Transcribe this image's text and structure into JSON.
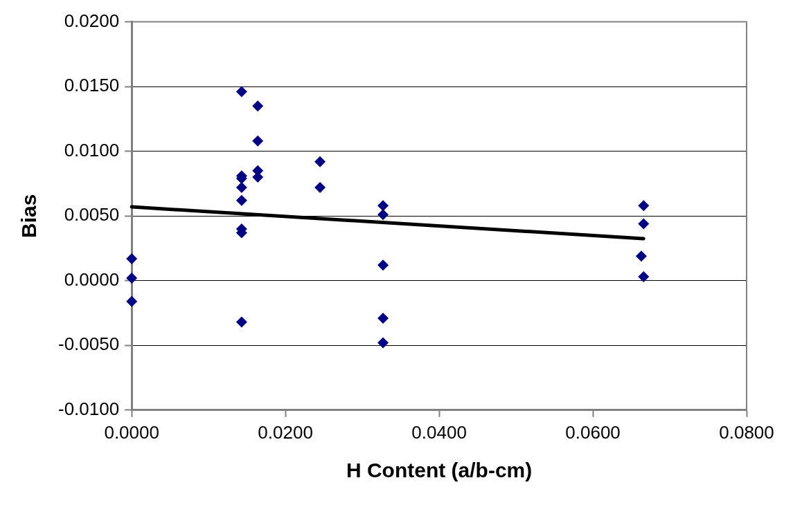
{
  "chart_data": {
    "type": "scatter",
    "xlabel": "H Content (a/b-cm)",
    "ylabel": "Bias",
    "xlim": [
      0,
      0.08
    ],
    "xticks": [
      {
        "value": 0,
        "label": "0.0000"
      },
      {
        "value": 0.02,
        "label": "0.0200"
      },
      {
        "value": 0.04,
        "label": "0.0400"
      },
      {
        "value": 0.06,
        "label": "0.0600"
      },
      {
        "value": 0.08,
        "label": "0.0800"
      }
    ],
    "ylim": [
      -0.01,
      0.02
    ],
    "yticks": [
      {
        "value": -0.01,
        "label": "-0.0100"
      },
      {
        "value": -0.005,
        "label": "-0.0050"
      },
      {
        "value": 0,
        "label": "0.0000"
      },
      {
        "value": 0.005,
        "label": "0.0050"
      },
      {
        "value": 0.01,
        "label": "0.0100"
      },
      {
        "value": 0.015,
        "label": "0.0150"
      },
      {
        "value": 0.02,
        "label": "0.0200"
      }
    ],
    "grid": "y",
    "legend": false,
    "marker": "diamond",
    "series": [
      {
        "color": "#000080",
        "x": [
          0,
          0,
          0,
          0.0143,
          0.0143,
          0.0143,
          0.0143,
          0.0143,
          0.0143,
          0.0143,
          0.0143,
          0.0164,
          0.0164,
          0.0164,
          0.0164,
          0.0245,
          0.0245,
          0.0327,
          0.0327,
          0.0327,
          0.0327,
          0.0327,
          0.0666,
          0.0666,
          0.0663,
          0.0666
        ],
        "values": [
          0.0017,
          0.0002,
          -0.0016,
          0.0146,
          0.0081,
          0.0079,
          0.0072,
          0.0062,
          0.004,
          0.0037,
          -0.0032,
          0.0135,
          0.0108,
          0.0085,
          0.008,
          0.0092,
          0.0072,
          0.0058,
          0.0051,
          0.0012,
          -0.0029,
          -0.0048,
          0.0058,
          0.0044,
          0.0019,
          0.0003
        ]
      },
      {
        "type": "line",
        "color": "#000000",
        "x": [
          0,
          0.0666
        ],
        "values": [
          0.0057,
          0.00325
        ],
        "marker": "none",
        "line_style": "solid"
      }
    ]
  }
}
